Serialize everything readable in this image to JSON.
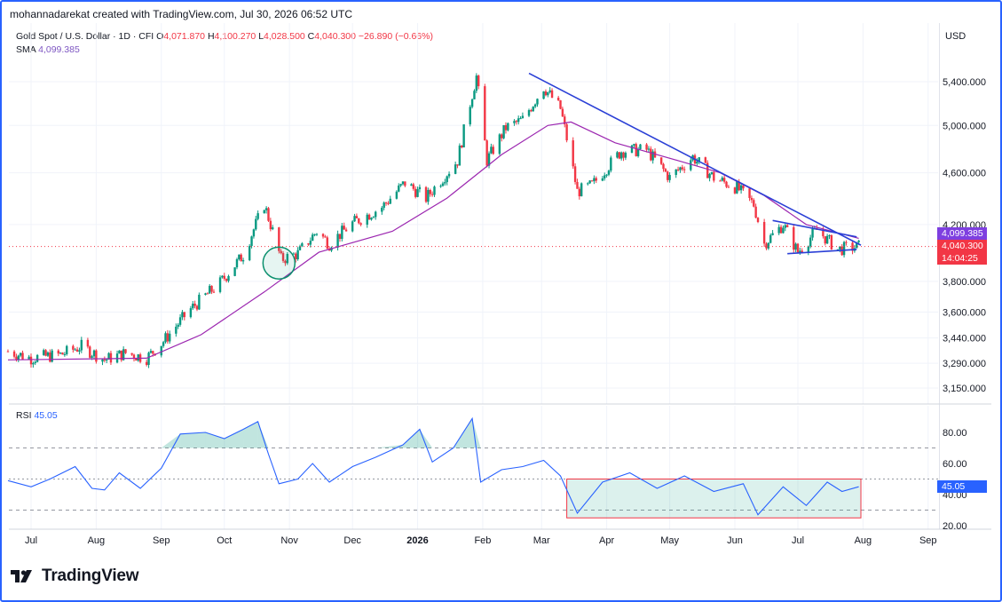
{
  "header": {
    "credit": "mohannadarekat created with TradingView.com, Jul 30, 2026 06:52 UTC"
  },
  "legend": {
    "symbol": "Gold Spot / U.S. Dollar · 1D · CFI",
    "o_label": "O",
    "o": "4,071.870",
    "h_label": "H",
    "h": "4,100.270",
    "l_label": "L",
    "l": "4,028.500",
    "c_label": "C",
    "c": "4,040.300",
    "change": "−26.890 (−0.66%)",
    "sma_label": "SMA",
    "sma": "4,099.385",
    "rsi_label": "RSI",
    "rsi": "45.05"
  },
  "toolbar": {
    "currency": "USD"
  },
  "tags": {
    "sma": "4,099.385",
    "price": "4,040.300",
    "countdown": "14:04:25",
    "rsi": "45.05"
  },
  "brand": {
    "name": "TradingView"
  },
  "colors": {
    "up": "#089981",
    "down": "#f23645",
    "sma": "#9c27b0",
    "rsi": "#2962ff",
    "trendline": "#2a3fd6"
  },
  "chart_data": [
    {
      "type": "candlestick",
      "title": "Gold Spot / U.S. Dollar",
      "timeframe": "1D",
      "y_scale": "log",
      "y_ticks": [
        3150,
        3290,
        3440,
        3600,
        3800,
        4200,
        4600,
        5000,
        5400
      ],
      "y_tick_labels": [
        "3,150.000",
        "3,290.000",
        "3,440.000",
        "3,600.000",
        "3,800.000",
        "4,200.000",
        "4,600.000",
        "5,000.000",
        "5,400.000"
      ],
      "x_tick_labels": [
        "Jul",
        "Aug",
        "Sep",
        "Oct",
        "Nov",
        "Dec",
        "2026",
        "Feb",
        "Mar",
        "Apr",
        "May",
        "Jun",
        "Jul",
        "Aug",
        "Sep"
      ],
      "x_tick_dates": [
        "2025-07-01",
        "2025-08-01",
        "2025-09-01",
        "2025-10-01",
        "2025-11-01",
        "2025-12-01",
        "2026-01-01",
        "2026-02-01",
        "2026-03-01",
        "2026-04-01",
        "2026-05-01",
        "2026-06-01",
        "2026-07-01",
        "2026-08-01",
        "2026-09-01"
      ],
      "price_path": [
        [
          "2025-06-20",
          3360
        ],
        [
          "2025-07-01",
          3320
        ],
        [
          "2025-07-15",
          3340
        ],
        [
          "2025-07-25",
          3390
        ],
        [
          "2025-08-05",
          3310
        ],
        [
          "2025-08-15",
          3350
        ],
        [
          "2025-08-25",
          3320
        ],
        [
          "2025-09-02",
          3420
        ],
        [
          "2025-09-15",
          3620
        ],
        [
          "2025-09-29",
          3790
        ],
        [
          "2025-10-10",
          3980
        ],
        [
          "2025-10-20",
          4350
        ],
        [
          "2025-10-28",
          3950
        ],
        [
          "2025-11-05",
          3990
        ],
        [
          "2025-11-14",
          4150
        ],
        [
          "2025-11-20",
          4060
        ],
        [
          "2025-12-01",
          4210
        ],
        [
          "2025-12-15",
          4330
        ],
        [
          "2025-12-26",
          4520
        ],
        [
          "2026-01-05",
          4400
        ],
        [
          "2026-01-20",
          4700
        ],
        [
          "2026-01-29",
          5450
        ],
        [
          "2026-02-03",
          4700
        ],
        [
          "2026-02-12",
          4980
        ],
        [
          "2026-02-20",
          5050
        ],
        [
          "2026-03-02",
          5350
        ],
        [
          "2026-03-10",
          5150
        ],
        [
          "2026-03-18",
          4450
        ],
        [
          "2026-03-25",
          4500
        ],
        [
          "2026-04-08",
          4780
        ],
        [
          "2026-04-20",
          4790
        ],
        [
          "2026-05-01",
          4560
        ],
        [
          "2026-05-12",
          4730
        ],
        [
          "2026-05-22",
          4560
        ],
        [
          "2026-06-02",
          4480
        ],
        [
          "2026-06-10",
          4350
        ],
        [
          "2026-06-15",
          4060
        ],
        [
          "2026-06-24",
          4200
        ],
        [
          "2026-07-01",
          4000
        ],
        [
          "2026-07-10",
          4160
        ],
        [
          "2026-07-20",
          4020
        ],
        [
          "2026-07-30",
          4040
        ]
      ],
      "sma_path": [
        [
          "2025-06-20",
          3310
        ],
        [
          "2025-08-25",
          3320
        ],
        [
          "2025-09-20",
          3460
        ],
        [
          "2025-10-20",
          3730
        ],
        [
          "2025-11-15",
          4000
        ],
        [
          "2025-12-20",
          4150
        ],
        [
          "2026-01-15",
          4400
        ],
        [
          "2026-02-10",
          4750
        ],
        [
          "2026-03-04",
          5000
        ],
        [
          "2026-03-15",
          5030
        ],
        [
          "2026-04-05",
          4850
        ],
        [
          "2026-05-05",
          4700
        ],
        [
          "2026-05-25",
          4600
        ],
        [
          "2026-06-15",
          4420
        ],
        [
          "2026-07-05",
          4200
        ],
        [
          "2026-07-30",
          4099.385
        ]
      ],
      "trendlines": [
        {
          "from": [
            "2026-02-23",
            5480
          ],
          "to": [
            "2026-07-31",
            4050
          ]
        },
        {
          "from": [
            "2026-06-19",
            4230
          ],
          "to": [
            "2026-07-29",
            4110
          ]
        },
        {
          "from": [
            "2026-06-26",
            3990
          ],
          "to": [
            "2026-07-29",
            4020
          ]
        }
      ],
      "highlight_circle": {
        "date": "2025-10-27",
        "value": 3925
      }
    },
    {
      "type": "line",
      "title": "RSI",
      "ylim": [
        20,
        90
      ],
      "y_ticks": [
        20,
        40,
        60,
        80
      ],
      "y_tick_labels": [
        "20.00",
        "40.00",
        "60.00",
        "80.00"
      ],
      "levels": [
        30,
        50,
        70
      ],
      "rsi_path": [
        [
          "2025-06-20",
          49
        ],
        [
          "2025-07-01",
          45
        ],
        [
          "2025-07-10",
          50
        ],
        [
          "2025-07-22",
          58
        ],
        [
          "2025-07-30",
          44
        ],
        [
          "2025-08-05",
          43
        ],
        [
          "2025-08-12",
          54
        ],
        [
          "2025-08-22",
          44
        ],
        [
          "2025-09-01",
          57
        ],
        [
          "2025-09-10",
          79
        ],
        [
          "2025-09-22",
          80
        ],
        [
          "2025-10-01",
          76
        ],
        [
          "2025-10-10",
          82
        ],
        [
          "2025-10-17",
          87
        ],
        [
          "2025-10-22",
          66
        ],
        [
          "2025-10-27",
          47
        ],
        [
          "2025-11-05",
          50
        ],
        [
          "2025-11-12",
          60
        ],
        [
          "2025-11-20",
          48
        ],
        [
          "2025-12-01",
          58
        ],
        [
          "2025-12-12",
          64
        ],
        [
          "2025-12-25",
          72
        ],
        [
          "2026-01-02",
          82
        ],
        [
          "2026-01-08",
          61
        ],
        [
          "2026-01-18",
          70
        ],
        [
          "2026-01-27",
          89
        ],
        [
          "2026-01-31",
          48
        ],
        [
          "2026-02-10",
          56
        ],
        [
          "2026-02-20",
          58
        ],
        [
          "2026-03-02",
          62
        ],
        [
          "2026-03-10",
          52
        ],
        [
          "2026-03-18",
          28
        ],
        [
          "2026-03-30",
          48
        ],
        [
          "2026-04-12",
          54
        ],
        [
          "2026-04-25",
          44
        ],
        [
          "2026-05-08",
          52
        ],
        [
          "2026-05-22",
          42
        ],
        [
          "2026-06-05",
          47
        ],
        [
          "2026-06-12",
          27
        ],
        [
          "2026-06-24",
          45
        ],
        [
          "2026-07-05",
          33
        ],
        [
          "2026-07-15",
          48
        ],
        [
          "2026-07-22",
          42
        ],
        [
          "2026-07-30",
          45.05
        ]
      ],
      "highlight_box": {
        "from": "2026-03-13",
        "to": "2026-07-31",
        "y_range": [
          25,
          50
        ]
      }
    }
  ]
}
